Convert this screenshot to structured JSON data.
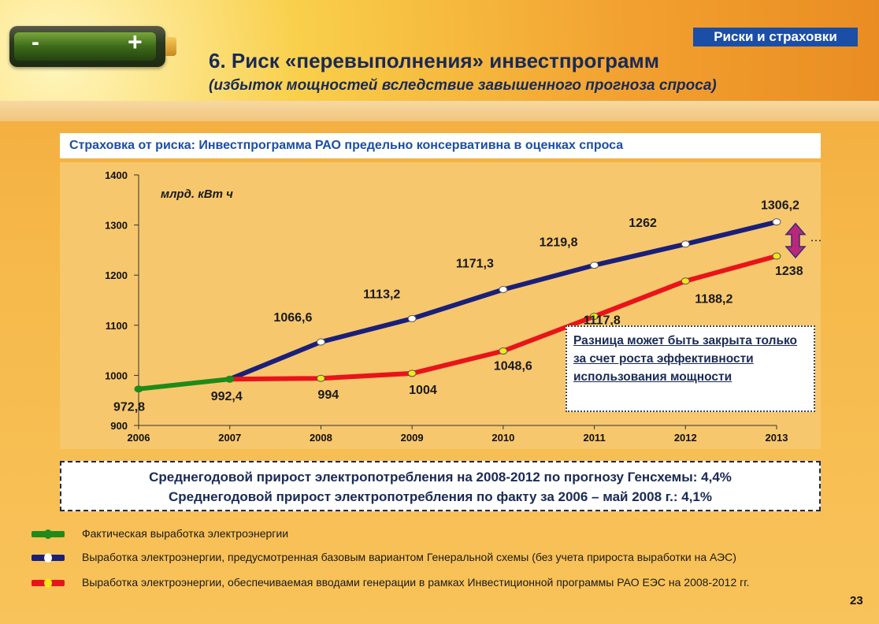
{
  "header": {
    "tag": "Риски и страховки",
    "title": "6. Риск «перевыполнения» инвестпрограмм",
    "subtitle": "(избыток мощностей вследствие завышенного прогноза спроса)",
    "battery": {
      "minus": "-",
      "plus": "+"
    }
  },
  "insurance_banner": "Страховка от риска: Инвестпрограмма РАО предельно консервативна в оценках спроса",
  "chart_data": {
    "type": "line",
    "unit": "млрд. кВт ч",
    "x": [
      2006,
      2007,
      2008,
      2009,
      2010,
      2011,
      2012,
      2013
    ],
    "ylim": [
      900,
      1400
    ],
    "yticks": [
      900,
      1000,
      1100,
      1200,
      1300,
      1400
    ],
    "grid": false,
    "series": [
      {
        "color": "#1f8a1a",
        "points": [
          [
            2006,
            972.8
          ],
          [
            2007,
            992.4
          ]
        ],
        "labels": [
          "972,8",
          "992,4"
        ]
      },
      {
        "color": "#1a1f7a",
        "marker_color": "#ffffff",
        "points": [
          [
            2007,
            992.4
          ],
          [
            2008,
            1066.6
          ],
          [
            2009,
            1113.2
          ],
          [
            2010,
            1171.3
          ],
          [
            2011,
            1219.8
          ],
          [
            2012,
            1262
          ],
          [
            2013,
            1306.2
          ]
        ],
        "labels": [
          "",
          "1066,6",
          "1113,2",
          "1171,3",
          "1219,8",
          "1262",
          "1306,2"
        ]
      },
      {
        "color": "#e8141a",
        "marker_color": "#f3e61b",
        "points": [
          [
            2007,
            992.4
          ],
          [
            2008,
            994
          ],
          [
            2009,
            1004
          ],
          [
            2010,
            1048.6
          ],
          [
            2011,
            1117.8
          ],
          [
            2012,
            1188.2
          ],
          [
            2013,
            1238
          ]
        ],
        "labels": [
          "",
          "994",
          "1004",
          "1048,6",
          "1117,8",
          "1188,2",
          "1238"
        ]
      }
    ]
  },
  "note": "Разница может быть закрыта только за счет роста эффективности использования мощности",
  "growth": {
    "line1": "Среднегодовой прирост электропотребления на 2008-2012 по прогнозу Генсхемы: 4,4%",
    "line2": "Среднегодовой прирост электропотребления по факту за 2006 – май 2008 г.: 4,1%"
  },
  "legend": [
    {
      "color": "#1f8a1a",
      "dot": "#1f8a1a",
      "text": "Фактическая выработка электроэнергии"
    },
    {
      "color": "#1a1f7a",
      "dot": "#ffffff",
      "text": "Выработка электроэнергии, предусмотренная базовым вариантом Генеральной схемы (без учета прироста выработки на АЭС)"
    },
    {
      "color": "#e8141a",
      "dot": "#f3e61b",
      "text": "Выработка электроэнергии, обеспечиваемая вводами генерации в рамках Инвестиционной программы РАО ЕЭС на 2008-2012 гг."
    }
  ],
  "page_number": "23"
}
